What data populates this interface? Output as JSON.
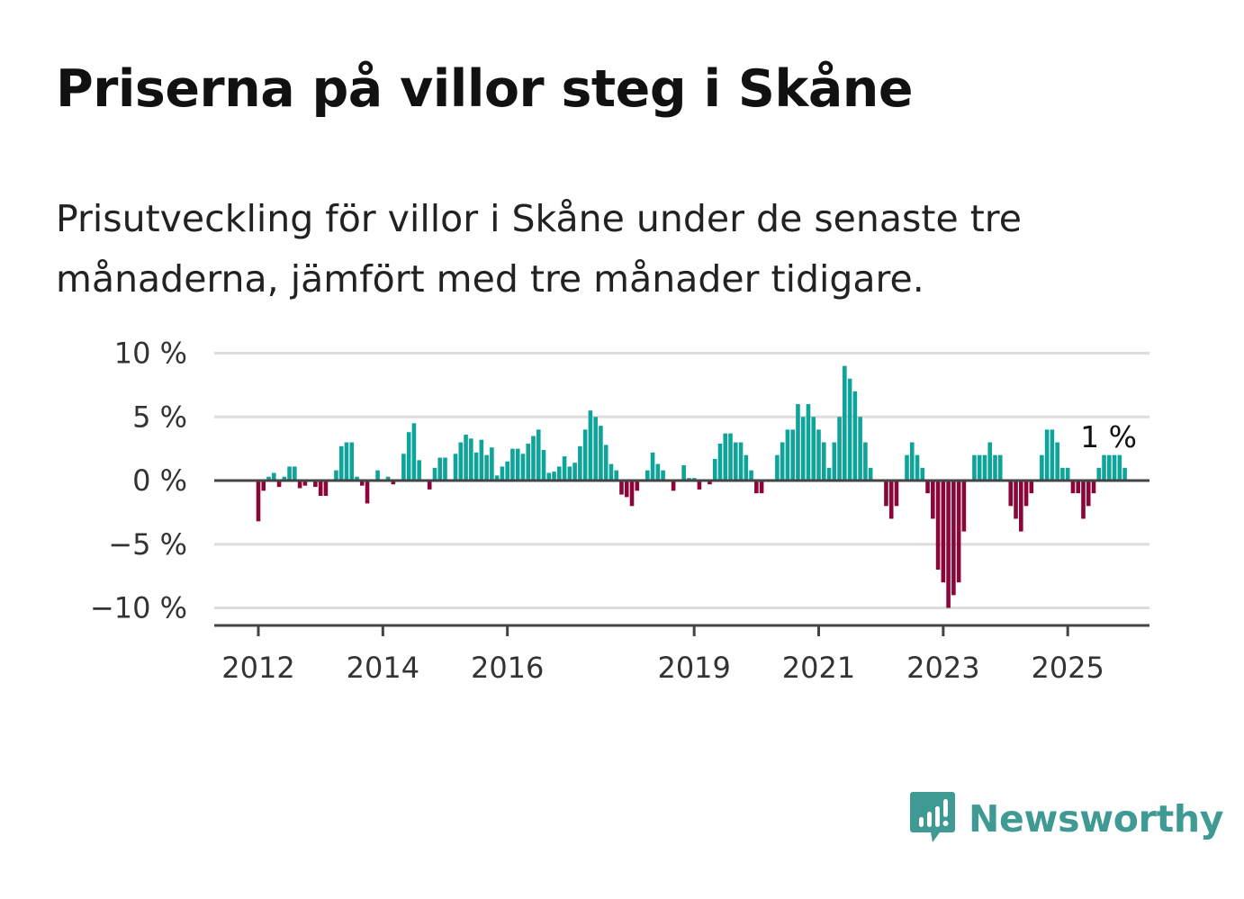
{
  "title": "Priserna på villor steg i Skåne",
  "subtitle": "Prisutveckling för villor i Skåne under de senaste tre månaderna, jämfört med tre månader tidigare.",
  "brand": {
    "name": "Newsworthy",
    "icon": "chart-speech-bubble-icon"
  },
  "colors": {
    "positive": "#0ea49a",
    "negative": "#8b0638",
    "grid": "#dddddd",
    "axis": "#444444",
    "brand": "#3f9a94"
  },
  "chart_data": {
    "type": "bar",
    "title": "Priserna på villor steg i Skåne",
    "xlabel": "",
    "ylabel": "",
    "ylim": [
      -11.5,
      10
    ],
    "yticks": [
      10,
      5,
      0,
      -5,
      -10
    ],
    "ytick_labels": [
      "10 %",
      "5 %",
      "0 %",
      "−5 %",
      "−10 %"
    ],
    "x_tick_labels": [
      "2012",
      "2014",
      "2016",
      "2019",
      "2021",
      "2023",
      "2025"
    ],
    "x_tick_months": [
      "2012-01",
      "2014-01",
      "2016-01",
      "2019-01",
      "2021-01",
      "2023-01",
      "2025-01"
    ],
    "grid": true,
    "legend": "none",
    "annotation": {
      "text": "1 %",
      "month": "2025-08",
      "value": 1
    },
    "start_month": "2011-10",
    "values": [
      0,
      0,
      0,
      -3.2,
      -0.8,
      0.3,
      0.6,
      -0.5,
      0.3,
      1.1,
      1.1,
      -0.6,
      -0.4,
      0,
      -0.5,
      -1.2,
      -1.2,
      0,
      0.8,
      2.7,
      3,
      3,
      0.3,
      -0.4,
      -1.8,
      0,
      0.8,
      0,
      0.3,
      -0.3,
      0,
      2.1,
      3.8,
      4.5,
      1.6,
      0,
      -0.7,
      1,
      1.8,
      1.8,
      0,
      2.1,
      3,
      3.6,
      3.3,
      2.2,
      3.2,
      2,
      2.6,
      0.4,
      1.1,
      1.5,
      2.5,
      2.5,
      2.1,
      2.9,
      3.5,
      4,
      2.4,
      0.6,
      0.7,
      1.1,
      1.9,
      1.1,
      1.4,
      2.7,
      4,
      5.5,
      5,
      4.3,
      2.8,
      1.3,
      0.8,
      -1.1,
      -1.3,
      -2,
      -0.8,
      0,
      0.8,
      2.2,
      1.3,
      0.8,
      0,
      -0.8,
      0,
      1.2,
      0.2,
      0.2,
      -0.7,
      0,
      -0.3,
      1.7,
      2.9,
      3.7,
      3.7,
      3,
      3,
      2,
      0.8,
      -1,
      -1,
      0,
      0,
      2,
      3,
      4,
      4,
      6,
      5,
      6,
      5,
      4,
      3,
      1,
      3,
      5,
      9,
      8,
      7,
      5,
      3,
      1,
      0,
      0,
      -2,
      -3,
      -2,
      0,
      2,
      3,
      2,
      1,
      -1,
      -3,
      -7,
      -8,
      -10,
      -9,
      -8,
      -4,
      0,
      2,
      2,
      2,
      3,
      2,
      2,
      0,
      -2,
      -3,
      -4,
      -2,
      -1,
      0,
      2,
      4,
      4,
      3,
      1,
      1,
      -1,
      -1,
      -3,
      -2,
      -1,
      1,
      2,
      2,
      2,
      2,
      1
    ]
  }
}
